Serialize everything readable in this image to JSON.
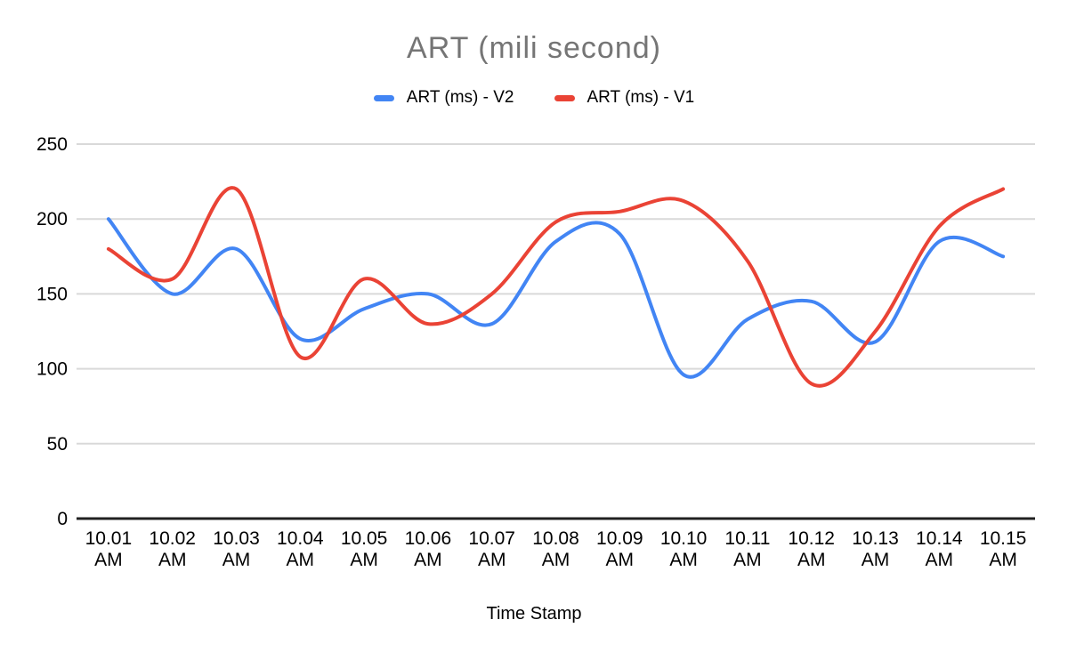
{
  "chart_data": {
    "type": "line",
    "title": "ART (mili second)",
    "xlabel": "Time Stamp",
    "line_style": "smooth",
    "grid": true,
    "legend_position": "top",
    "categories": [
      "10.01 AM",
      "10.02 AM",
      "10.03 AM",
      "10.04 AM",
      "10.05 AM",
      "10.06 AM",
      "10.07 AM",
      "10.08 AM",
      "10.09 AM",
      "10.10 AM",
      "10.11 AM",
      "10.12 AM",
      "10.13 AM",
      "10.14 AM",
      "10.15 AM"
    ],
    "ylim": [
      0,
      250
    ],
    "yticks": [
      0,
      50,
      100,
      150,
      200,
      250
    ],
    "series": [
      {
        "name": "ART (ms) - V2",
        "color": "#4285F4",
        "values": [
          200,
          150,
          180,
          120,
          140,
          150,
          130,
          185,
          190,
          96,
          133,
          145,
          118,
          185,
          175
        ]
      },
      {
        "name": "ART (ms) - V1",
        "color": "#EA4335",
        "values": [
          180,
          160,
          220,
          108,
          160,
          130,
          150,
          198,
          205,
          212,
          172,
          90,
          125,
          195,
          220
        ]
      }
    ],
    "colors": {
      "title_text": "#757575",
      "axis_text": "#000000",
      "gridline": "#D9D9D9",
      "baseline": "#212121",
      "background": "#FFFFFF"
    }
  }
}
